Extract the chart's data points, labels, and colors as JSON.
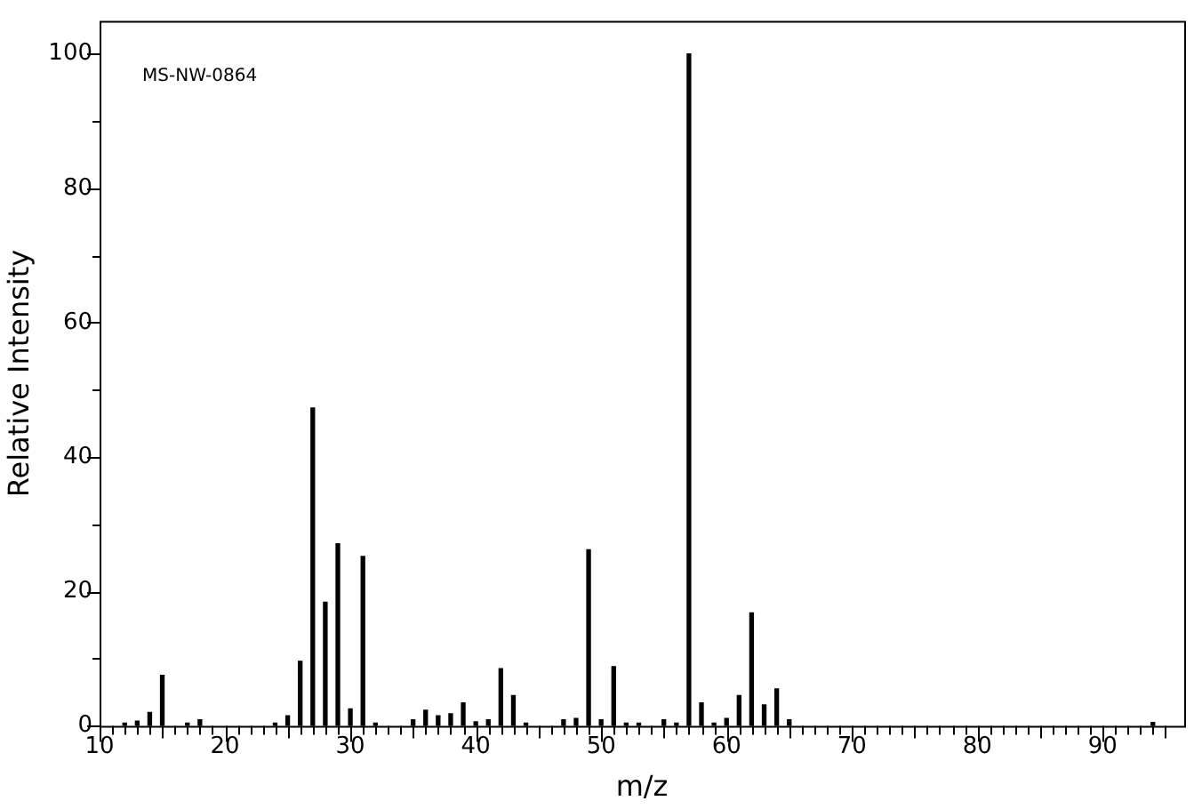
{
  "chart_data": {
    "type": "bar",
    "xlabel": "m/z",
    "ylabel": "Relative Intensity",
    "annotations": [
      "MS-NW-0864"
    ],
    "x": [
      12,
      13,
      14,
      15,
      17,
      18,
      24,
      25,
      26,
      27,
      28,
      29,
      30,
      31,
      32,
      35,
      36,
      37,
      38,
      39,
      40,
      41,
      42,
      43,
      44,
      47,
      48,
      49,
      50,
      51,
      52,
      53,
      55,
      56,
      57,
      58,
      59,
      60,
      61,
      62,
      63,
      64,
      65,
      94
    ],
    "values": [
      0.4,
      0.7,
      2.0,
      7.5,
      0.4,
      0.9,
      0.4,
      1.5,
      9.6,
      47.3,
      18.4,
      27.1,
      2.5,
      25.2,
      0.4,
      0.9,
      2.3,
      1.5,
      1.8,
      3.4,
      0.6,
      0.9,
      8.5,
      4.5,
      0.4,
      0.9,
      1.1,
      26.2,
      0.9,
      8.8,
      0.4,
      0.4,
      0.9,
      0.4,
      100,
      3.4,
      0.4,
      1.1,
      4.5,
      16.8,
      3.1,
      5.5,
      0.9,
      0.5
    ],
    "color": "#000000",
    "xlim": [
      10,
      96.5
    ],
    "xticks": [
      10,
      {
        "value": 11,
        "label": null
      },
      {
        "value": 12,
        "label": null
      },
      {
        "value": 13,
        "label": null
      },
      {
        "value": 14,
        "label": null
      },
      {
        "value": 15,
        "label": null
      },
      {
        "value": 16,
        "label": null
      },
      {
        "value": 17,
        "label": null
      },
      {
        "value": 18,
        "label": null
      },
      {
        "value": 19,
        "label": null
      },
      20,
      {
        "value": 21,
        "label": null
      },
      {
        "value": 22,
        "label": null
      },
      {
        "value": 23,
        "label": null
      },
      {
        "value": 24,
        "label": null
      },
      {
        "value": 25,
        "label": null
      },
      {
        "value": 26,
        "label": null
      },
      {
        "value": 27,
        "label": null
      },
      {
        "value": 28,
        "label": null
      },
      {
        "value": 29,
        "label": null
      },
      30,
      {
        "value": 31,
        "label": null
      },
      {
        "value": 32,
        "label": null
      },
      {
        "value": 33,
        "label": null
      },
      {
        "value": 34,
        "label": null
      },
      {
        "value": 35,
        "label": null
      },
      {
        "value": 36,
        "label": null
      },
      {
        "value": 37,
        "label": null
      },
      {
        "value": 38,
        "label": null
      },
      {
        "value": 39,
        "label": null
      },
      40,
      {
        "value": 41,
        "label": null
      },
      {
        "value": 42,
        "label": null
      },
      {
        "value": 43,
        "label": null
      },
      {
        "value": 44,
        "label": null
      },
      {
        "value": 45,
        "label": null
      },
      {
        "value": 46,
        "label": null
      },
      {
        "value": 47,
        "label": null
      },
      {
        "value": 48,
        "label": null
      },
      {
        "value": 49,
        "label": null
      },
      50,
      {
        "value": 51,
        "label": null
      },
      {
        "value": 52,
        "label": null
      },
      {
        "value": 53,
        "label": null
      },
      {
        "value": 54,
        "label": null
      },
      {
        "value": 55,
        "label": null
      },
      {
        "value": 56,
        "label": null
      },
      {
        "value": 57,
        "label": null
      },
      {
        "value": 58,
        "label": null
      },
      {
        "value": 59,
        "label": null
      },
      60,
      {
        "value": 61,
        "label": null
      },
      {
        "value": 62,
        "label": null
      },
      {
        "value": 63,
        "label": null
      },
      {
        "value": 64,
        "label": null
      },
      {
        "value": 65,
        "label": null
      },
      {
        "value": 66,
        "label": null
      },
      {
        "value": 67,
        "label": null
      },
      {
        "value": 68,
        "label": null
      },
      {
        "value": 69,
        "label": null
      },
      70,
      {
        "value": 71,
        "label": null
      },
      {
        "value": 72,
        "label": null
      },
      {
        "value": 73,
        "label": null
      },
      {
        "value": 74,
        "label": null
      },
      {
        "value": 75,
        "label": null
      },
      {
        "value": 76,
        "label": null
      },
      {
        "value": 77,
        "label": null
      },
      {
        "value": 78,
        "label": null
      },
      {
        "value": 79,
        "label": null
      },
      80,
      {
        "value": 81,
        "label": null
      },
      {
        "value": 82,
        "label": null
      },
      {
        "value": 83,
        "label": null
      },
      {
        "value": 84,
        "label": null
      },
      {
        "value": 85,
        "label": null
      },
      {
        "value": 86,
        "label": null
      },
      {
        "value": 87,
        "label": null
      },
      {
        "value": 88,
        "label": null
      },
      {
        "value": 89,
        "label": null
      },
      90,
      {
        "value": 91,
        "label": null
      },
      {
        "value": 92,
        "label": null
      },
      {
        "value": 93,
        "label": null
      },
      {
        "value": 94,
        "label": null
      },
      {
        "value": 95,
        "label": null
      }
    ],
    "ylim": [
      0,
      104.9
    ],
    "yticks": [
      0,
      {
        "value": 10,
        "label": null
      },
      20,
      {
        "value": 30,
        "label": null
      },
      40,
      {
        "value": 50,
        "label": null
      },
      60,
      {
        "value": 70,
        "label": null
      },
      80,
      {
        "value": 90,
        "label": null
      },
      100
    ],
    "grid": false,
    "legend": false
  }
}
